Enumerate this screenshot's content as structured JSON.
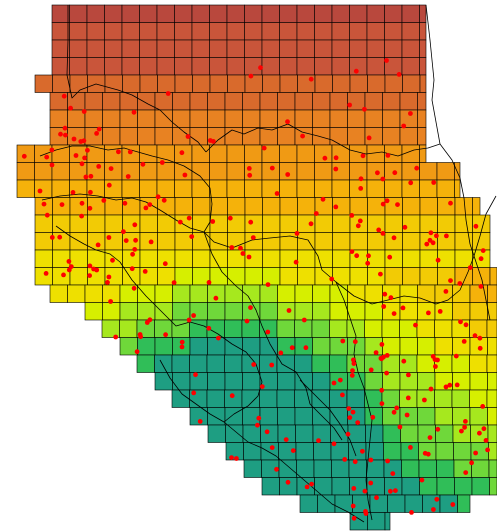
{
  "colors": {
    "background": "#ffffff",
    "grid_line": "#000000",
    "border_line": "#000000",
    "points": "#ff0000",
    "scale": [
      "#b9483d",
      "#c9553a",
      "#d96a2c",
      "#e88222",
      "#f09a14",
      "#f5b20a",
      "#f2cb05",
      "#eee000",
      "#d6ef00",
      "#a6e81e",
      "#6fd83a",
      "#30be58",
      "#1e9e82"
    ]
  },
  "layers": {
    "grid": "value-grid",
    "boundaries": "country-boundaries",
    "points": "sample-points"
  }
}
